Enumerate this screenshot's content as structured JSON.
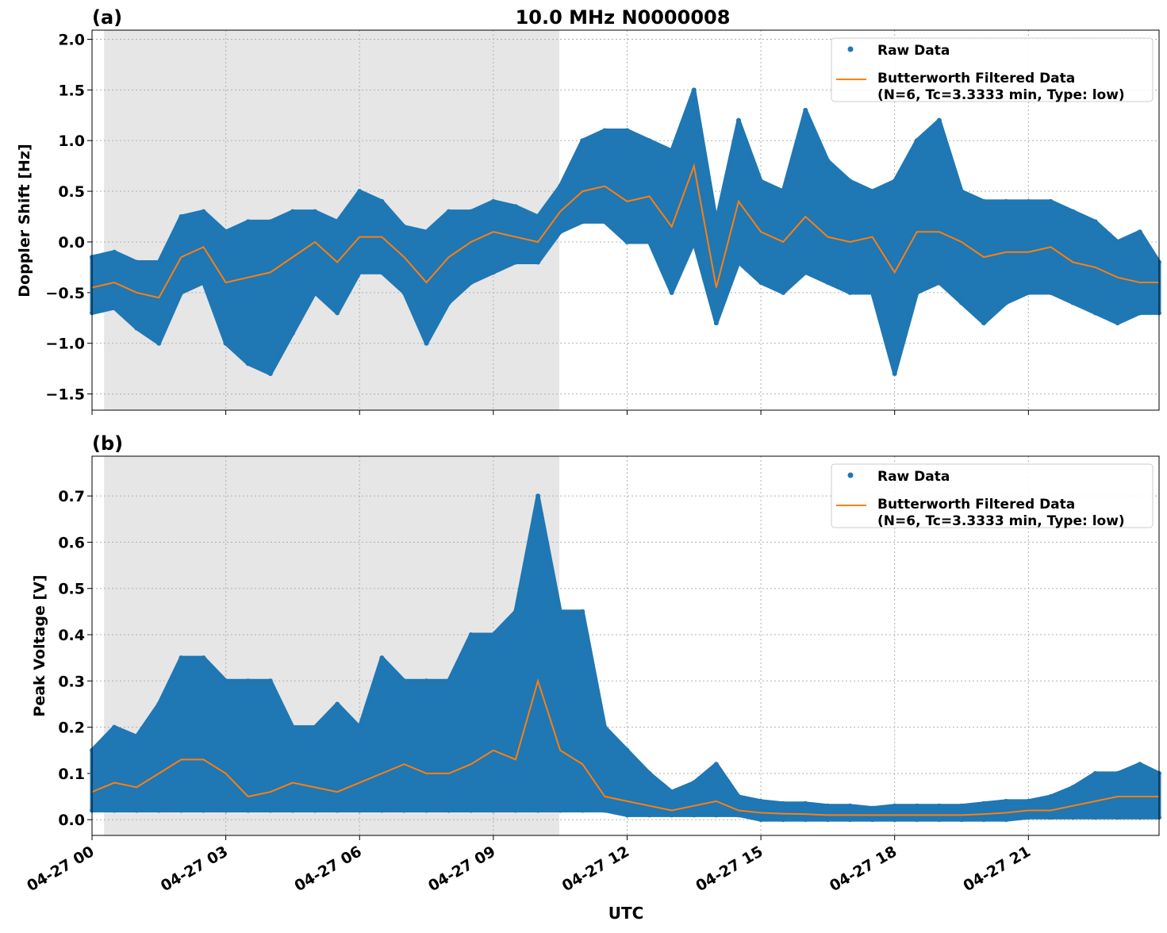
{
  "chart_data": [
    {
      "type": "scatter+line",
      "panel_label": "(a)",
      "title": "10.0 MHz N0000008",
      "xlabel": "",
      "ylabel": "Doppler Shift [Hz]",
      "xlim_hours": [
        0,
        23.93
      ],
      "ylim": [
        -1.66,
        2.09
      ],
      "yticks": [
        -1.5,
        -1.0,
        -0.5,
        0.0,
        0.5,
        1.0,
        1.5,
        2.0
      ],
      "ytick_labels": [
        "−1.5",
        "−1.0",
        "−0.5",
        "0.0",
        "0.5",
        "1.0",
        "1.5",
        "2.0"
      ],
      "grid": true,
      "shaded_hours": [
        0.27,
        10.48
      ],
      "legend": {
        "placement": "top-right",
        "entries": [
          "Raw Data",
          "Butterworth Filtered Data",
          "(N=6, Tc=3.3333 min, Type: low)"
        ]
      },
      "x_hours": [
        0,
        0.5,
        1,
        1.5,
        2,
        2.5,
        3,
        3.5,
        4,
        4.5,
        5,
        5.5,
        6,
        6.5,
        7,
        7.5,
        8,
        8.5,
        9,
        9.5,
        10,
        10.5,
        11,
        11.5,
        12,
        12.5,
        13,
        13.5,
        14,
        14.5,
        15,
        15.5,
        16,
        16.5,
        17,
        17.5,
        18,
        18.5,
        19,
        19.5,
        20,
        20.5,
        21,
        21.5,
        22,
        22.5,
        23,
        23.5,
        23.93
      ],
      "series": [
        {
          "name": "Butterworth Filtered Data",
          "color": "#ff7f0e",
          "values": [
            -0.45,
            -0.4,
            -0.5,
            -0.55,
            -0.15,
            -0.05,
            -0.4,
            -0.35,
            -0.3,
            -0.15,
            0.0,
            -0.2,
            0.05,
            0.05,
            -0.15,
            -0.4,
            -0.15,
            0.0,
            0.1,
            0.05,
            0.0,
            0.3,
            0.5,
            0.55,
            0.4,
            0.45,
            0.15,
            0.75,
            -0.45,
            0.4,
            0.1,
            0.0,
            0.25,
            0.05,
            0.0,
            0.05,
            -0.3,
            0.1,
            0.1,
            0.0,
            -0.15,
            -0.1,
            -0.1,
            -0.05,
            -0.2,
            -0.25,
            -0.35,
            -0.4,
            -0.4
          ]
        },
        {
          "name": "Raw Data",
          "color": "#1f77b4",
          "upper": [
            -0.15,
            -0.1,
            -0.2,
            -0.2,
            0.25,
            0.3,
            0.1,
            0.2,
            0.2,
            0.3,
            0.3,
            0.2,
            0.5,
            0.4,
            0.15,
            0.1,
            0.3,
            0.3,
            0.4,
            0.35,
            0.25,
            0.55,
            1.0,
            1.1,
            1.1,
            1.0,
            0.9,
            1.5,
            0.2,
            1.2,
            0.6,
            0.5,
            1.3,
            0.8,
            0.6,
            0.5,
            0.6,
            1.0,
            1.2,
            0.5,
            0.4,
            0.4,
            0.4,
            0.4,
            0.3,
            0.2,
            0.0,
            0.1,
            -0.2
          ],
          "lower": [
            -0.7,
            -0.65,
            -0.85,
            -1.0,
            -0.5,
            -0.4,
            -1.0,
            -1.2,
            -1.3,
            -0.9,
            -0.5,
            -0.7,
            -0.3,
            -0.3,
            -0.5,
            -1.0,
            -0.6,
            -0.4,
            -0.3,
            -0.2,
            -0.2,
            0.1,
            0.2,
            0.2,
            0.0,
            0.0,
            -0.5,
            0.0,
            -0.8,
            -0.2,
            -0.4,
            -0.5,
            -0.3,
            -0.4,
            -0.5,
            -0.5,
            -1.3,
            -0.5,
            -0.4,
            -0.6,
            -0.8,
            -0.6,
            -0.5,
            -0.5,
            -0.6,
            -0.7,
            -0.8,
            -0.7,
            -0.7
          ]
        }
      ]
    },
    {
      "type": "scatter+line",
      "panel_label": "(b)",
      "xlabel": "UTC",
      "ylabel": "Peak Voltage [V]",
      "xlim_hours": [
        0,
        23.93
      ],
      "ylim": [
        -0.034,
        0.786
      ],
      "yticks": [
        0.0,
        0.1,
        0.2,
        0.3,
        0.4,
        0.5,
        0.6,
        0.7
      ],
      "ytick_labels": [
        "0.0",
        "0.1",
        "0.2",
        "0.3",
        "0.4",
        "0.5",
        "0.6",
        "0.7"
      ],
      "xticks_hours": [
        0,
        3,
        6,
        9,
        12,
        15,
        18,
        21
      ],
      "xtick_labels": [
        "04-27 00",
        "04-27 03",
        "04-27 06",
        "04-27 09",
        "04-27 12",
        "04-27 15",
        "04-27 18",
        "04-27 21"
      ],
      "grid": true,
      "shaded_hours": [
        0.27,
        10.48
      ],
      "legend": {
        "placement": "top-right",
        "entries": [
          "Raw Data",
          "Butterworth Filtered Data",
          "(N=6, Tc=3.3333 min, Type: low)"
        ]
      },
      "x_hours": [
        0,
        0.5,
        1,
        1.5,
        2,
        2.5,
        3,
        3.5,
        4,
        4.5,
        5,
        5.5,
        6,
        6.5,
        7,
        7.5,
        8,
        8.5,
        9,
        9.5,
        10,
        10.5,
        11,
        11.5,
        12,
        12.5,
        13,
        13.5,
        14,
        14.5,
        15,
        15.5,
        16,
        16.5,
        17,
        17.5,
        18,
        18.5,
        19,
        19.5,
        20,
        20.5,
        21,
        21.5,
        22,
        22.5,
        23,
        23.5,
        23.93
      ],
      "series": [
        {
          "name": "Butterworth Filtered Data",
          "color": "#ff7f0e",
          "values": [
            0.06,
            0.08,
            0.07,
            0.1,
            0.13,
            0.13,
            0.1,
            0.05,
            0.06,
            0.08,
            0.07,
            0.06,
            0.08,
            0.1,
            0.12,
            0.1,
            0.1,
            0.12,
            0.15,
            0.13,
            0.3,
            0.15,
            0.12,
            0.05,
            0.04,
            0.03,
            0.02,
            0.03,
            0.04,
            0.02,
            0.015,
            0.013,
            0.012,
            0.01,
            0.01,
            0.01,
            0.01,
            0.01,
            0.01,
            0.01,
            0.012,
            0.015,
            0.02,
            0.02,
            0.03,
            0.04,
            0.05,
            0.05,
            0.05
          ]
        },
        {
          "name": "Raw Data",
          "color": "#1f77b4",
          "upper": [
            0.15,
            0.2,
            0.18,
            0.25,
            0.35,
            0.35,
            0.3,
            0.3,
            0.3,
            0.2,
            0.2,
            0.25,
            0.2,
            0.35,
            0.3,
            0.3,
            0.3,
            0.4,
            0.4,
            0.45,
            0.7,
            0.45,
            0.45,
            0.2,
            0.15,
            0.1,
            0.06,
            0.08,
            0.12,
            0.05,
            0.04,
            0.035,
            0.035,
            0.03,
            0.03,
            0.025,
            0.03,
            0.03,
            0.03,
            0.03,
            0.035,
            0.04,
            0.04,
            0.05,
            0.07,
            0.1,
            0.1,
            0.12,
            0.1
          ],
          "lower": [
            0.02,
            0.02,
            0.02,
            0.02,
            0.02,
            0.02,
            0.02,
            0.02,
            0.02,
            0.02,
            0.02,
            0.02,
            0.02,
            0.02,
            0.02,
            0.02,
            0.02,
            0.02,
            0.02,
            0.02,
            0.02,
            0.02,
            0.02,
            0.02,
            0.01,
            0.01,
            0.01,
            0.01,
            0.01,
            0.01,
            0.0,
            0.0,
            0.0,
            0.0,
            0.0,
            0.0,
            0.0,
            0.0,
            0.0,
            0.0,
            0.0,
            0.0,
            0.005,
            0.005,
            0.005,
            0.005,
            0.005,
            0.005,
            0.005
          ]
        }
      ]
    }
  ]
}
